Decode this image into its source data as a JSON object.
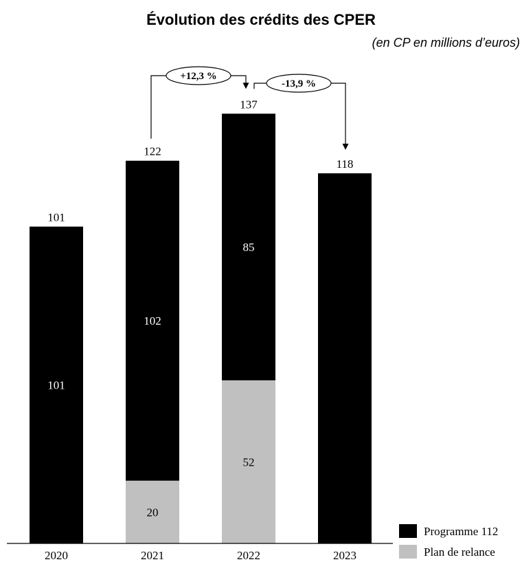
{
  "chart_data": {
    "type": "bar",
    "stacked": true,
    "title": "Évolution des crédits des CPER",
    "subtitle": "(en CP en millions d’euros)",
    "categories": [
      "2020",
      "2021",
      "2022",
      "2023"
    ],
    "totals": [
      101,
      122,
      137,
      118
    ],
    "series": [
      {
        "name": "Programme 112",
        "color": "#000000",
        "values": [
          101,
          102,
          85,
          118
        ],
        "value_labels": [
          "101",
          "102",
          "85",
          ""
        ]
      },
      {
        "name": "Plan de relance",
        "color": "#c0c0c0",
        "values": [
          0,
          20,
          52,
          0
        ],
        "value_labels": [
          "",
          "20",
          "52",
          ""
        ]
      }
    ],
    "annotations": [
      {
        "from": "2021",
        "to": "2022",
        "label": "+12,3 %"
      },
      {
        "from": "2022",
        "to": "2023",
        "label": "-13,9 %"
      }
    ],
    "ylim": [
      0,
      160
    ],
    "grid": false,
    "legend_position": "bottom-right"
  }
}
